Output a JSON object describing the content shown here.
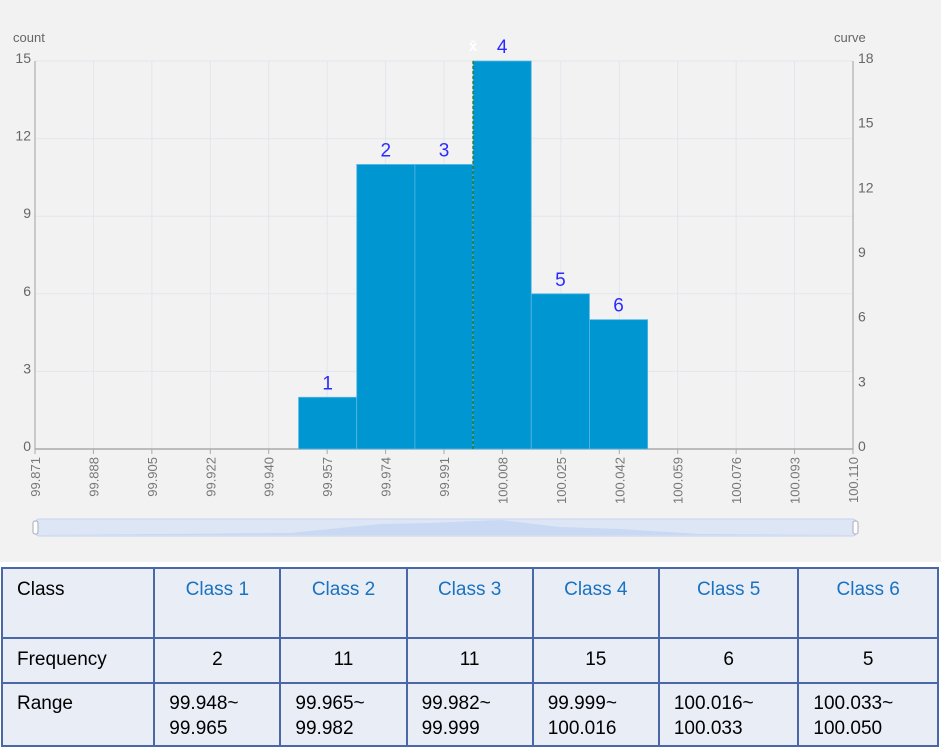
{
  "chart_data": {
    "type": "bar",
    "subtype": "histogram",
    "ylabel": "count",
    "y2label": "curve",
    "ylim": [
      0,
      15
    ],
    "y2lim": [
      0,
      18
    ],
    "yticks": [
      "0",
      "3",
      "6",
      "9",
      "12",
      "15"
    ],
    "y2ticks": [
      "0",
      "3",
      "6",
      "9",
      "12",
      "15",
      "18"
    ],
    "xticks": [
      "99.871",
      "99.888",
      "99.905",
      "99.922",
      "99.940",
      "99.957",
      "99.974",
      "99.991",
      "100.008",
      "100.025",
      "100.042",
      "100.059",
      "100.076",
      "100.093",
      "100.110"
    ],
    "bars": [
      {
        "label": "1",
        "start": 99.948,
        "end": 99.965,
        "value": 2
      },
      {
        "label": "2",
        "start": 99.965,
        "end": 99.982,
        "value": 11
      },
      {
        "label": "3",
        "start": 99.982,
        "end": 99.999,
        "value": 11
      },
      {
        "label": "4",
        "start": 99.999,
        "end": 100.016,
        "value": 15
      },
      {
        "label": "5",
        "start": 100.016,
        "end": 100.033,
        "value": 6
      },
      {
        "label": "6",
        "start": 100.033,
        "end": 100.05,
        "value": 5
      }
    ],
    "mean_marker": {
      "x": 99.999,
      "label": "x̄"
    },
    "colors": {
      "bar": "#0096d2",
      "bar_label": "#2b2bff",
      "mean_line": "#2e7d32"
    },
    "grid": true
  },
  "table": {
    "headers": [
      "Class",
      "Frequency",
      "Range"
    ],
    "classes": [
      {
        "name": "Class 1",
        "frequency": "2",
        "range1": "99.948~",
        "range2": "99.965"
      },
      {
        "name": "Class 2",
        "frequency": "11",
        "range1": "99.965~",
        "range2": "99.982"
      },
      {
        "name": "Class 3",
        "frequency": "11",
        "range1": "99.982~",
        "range2": "99.999"
      },
      {
        "name": "Class 4",
        "frequency": "15",
        "range1": "99.999~",
        "range2": "100.016"
      },
      {
        "name": "Class 5",
        "frequency": "6",
        "range1": "100.016~",
        "range2": "100.033"
      },
      {
        "name": "Class 6",
        "frequency": "5",
        "range1": "100.033~",
        "range2": "100.050"
      }
    ]
  }
}
